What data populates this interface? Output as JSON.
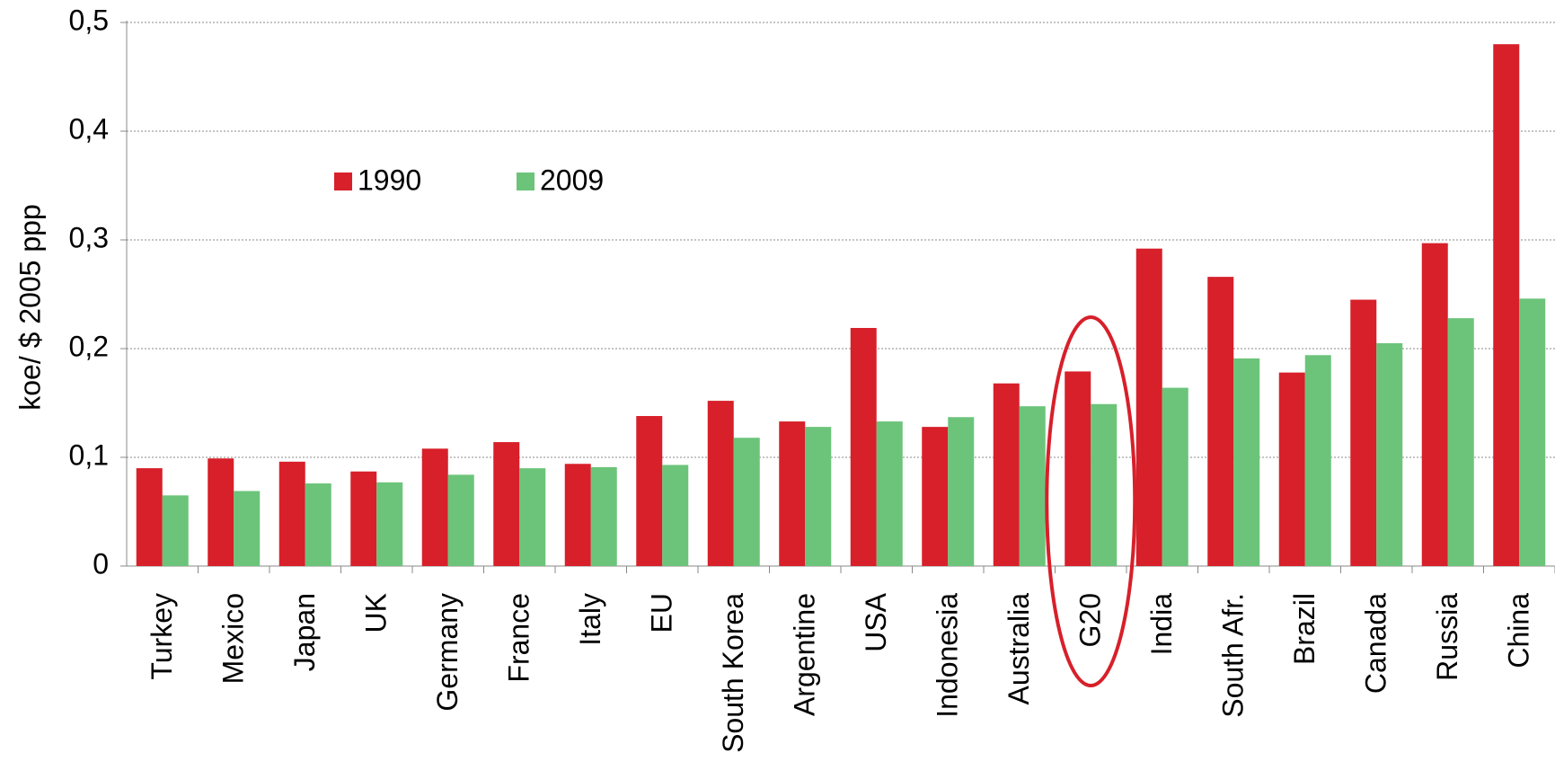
{
  "chart_data": {
    "type": "bar",
    "y_label": "koe/ $ 2005 ppp",
    "categories": [
      "Turkey",
      "Mexico",
      "Japan",
      "UK",
      "Germany",
      "France",
      "Italy",
      "EU",
      "South Korea",
      "Argentine",
      "USA",
      "Indonesia",
      "Australia",
      "G20",
      "India",
      "South Afr.",
      "Brazil",
      "Canada",
      "Russia",
      "China"
    ],
    "series": [
      {
        "name": "1990",
        "color": "#d7202a",
        "values": [
          0.09,
          0.099,
          0.096,
          0.087,
          0.108,
          0.114,
          0.094,
          0.138,
          0.152,
          0.133,
          0.219,
          0.128,
          0.168,
          0.179,
          0.292,
          0.266,
          0.178,
          0.245,
          0.297,
          0.48
        ]
      },
      {
        "name": "2009",
        "color": "#6cc47a",
        "values": [
          0.065,
          0.069,
          0.076,
          0.077,
          0.084,
          0.09,
          0.091,
          0.093,
          0.118,
          0.128,
          0.133,
          0.137,
          0.147,
          0.149,
          0.164,
          0.191,
          0.194,
          0.205,
          0.228,
          0.246
        ]
      }
    ],
    "ylim": [
      0,
      0.5
    ],
    "yticks": [
      0,
      {
        "value": 0.1,
        "label": "0,1"
      },
      {
        "value": 0.2,
        "label": "0,2"
      },
      {
        "value": 0.3,
        "label": "0,3"
      },
      {
        "value": 0.4,
        "label": "0,4"
      },
      {
        "value": 0.5,
        "label": "0,5"
      }
    ],
    "grid": true
  }
}
